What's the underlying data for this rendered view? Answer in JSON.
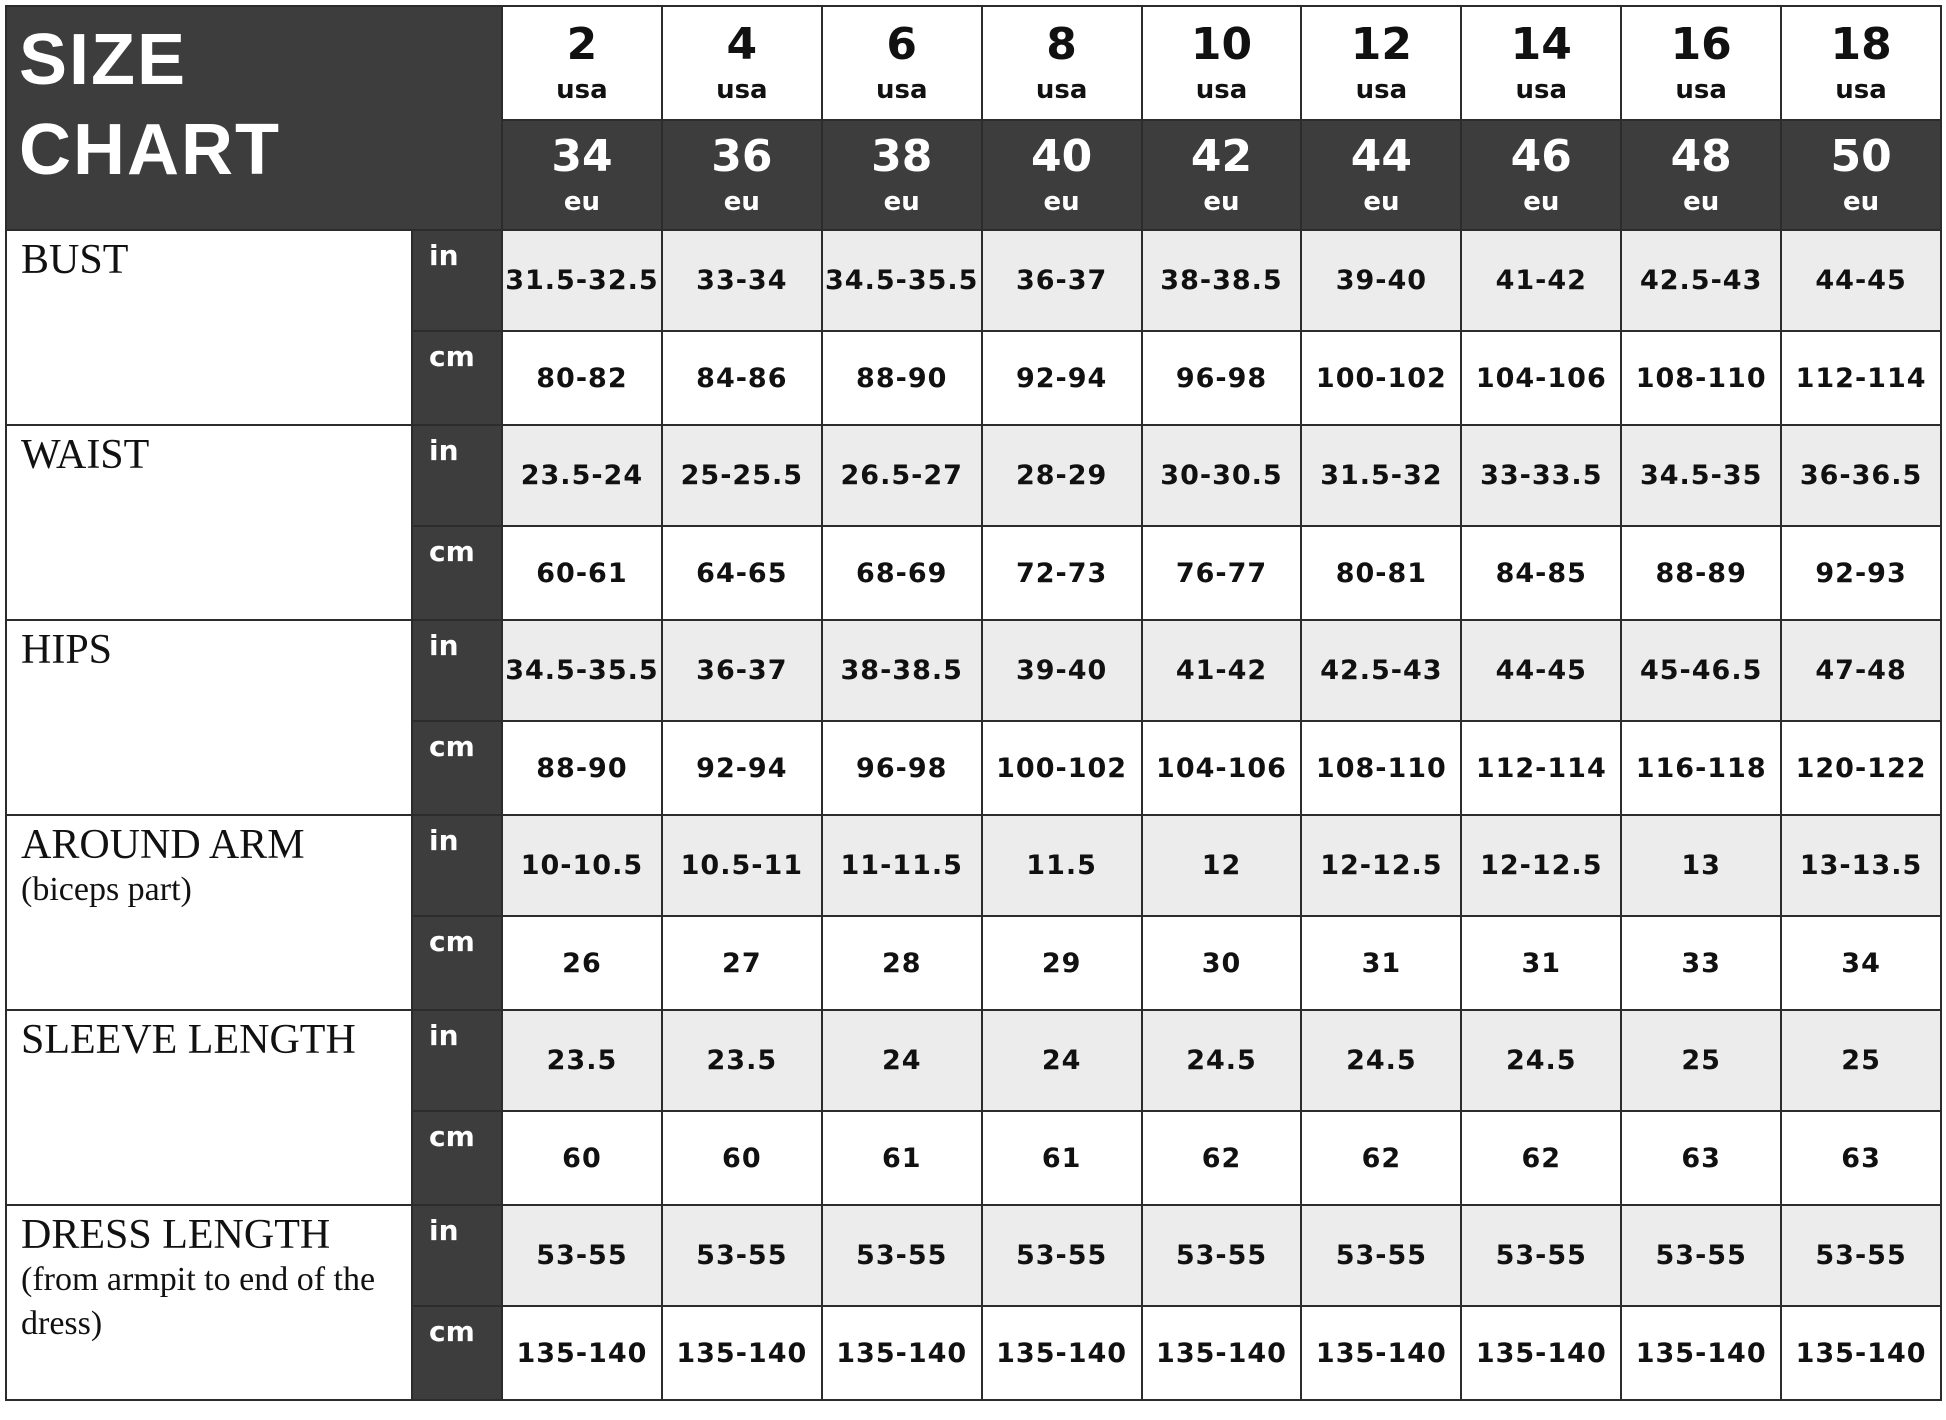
{
  "title_line1": "SIZE",
  "title_line2": "CHART",
  "usa_sizes": [
    "2",
    "4",
    "6",
    "8",
    "10",
    "12",
    "14",
    "16",
    "18"
  ],
  "usa_label": "usa",
  "eu_sizes": [
    "34",
    "36",
    "38",
    "40",
    "42",
    "44",
    "46",
    "48",
    "50"
  ],
  "eu_label": "eu",
  "unit_in": "in",
  "unit_cm": "cm",
  "rows": [
    {
      "label": "BUST",
      "sub": "",
      "in": [
        "31.5-32.5",
        "33-34",
        "34.5-35.5",
        "36-37",
        "38-38.5",
        "39-40",
        "41-42",
        "42.5-43",
        "44-45"
      ],
      "cm": [
        "80-82",
        "84-86",
        "88-90",
        "92-94",
        "96-98",
        "100-102",
        "104-106",
        "108-110",
        "112-114"
      ]
    },
    {
      "label": "WAIST",
      "sub": "",
      "in": [
        "23.5-24",
        "25-25.5",
        "26.5-27",
        "28-29",
        "30-30.5",
        "31.5-32",
        "33-33.5",
        "34.5-35",
        "36-36.5"
      ],
      "cm": [
        "60-61",
        "64-65",
        "68-69",
        "72-73",
        "76-77",
        "80-81",
        "84-85",
        "88-89",
        "92-93"
      ]
    },
    {
      "label": "HIPS",
      "sub": "",
      "in": [
        "34.5-35.5",
        "36-37",
        "38-38.5",
        "39-40",
        "41-42",
        "42.5-43",
        "44-45",
        "45-46.5",
        "47-48"
      ],
      "cm": [
        "88-90",
        "92-94",
        "96-98",
        "100-102",
        "104-106",
        "108-110",
        "112-114",
        "116-118",
        "120-122"
      ]
    },
    {
      "label": "AROUND ARM",
      "sub": "(biceps part)",
      "in": [
        "10-10.5",
        "10.5-11",
        "11-11.5",
        "11.5",
        "12",
        "12-12.5",
        "12-12.5",
        "13",
        "13-13.5"
      ],
      "cm": [
        "26",
        "27",
        "28",
        "29",
        "30",
        "31",
        "31",
        "33",
        "34"
      ]
    },
    {
      "label": "SLEEVE  LENGTH",
      "sub": "",
      "in": [
        "23.5",
        "23.5",
        "24",
        "24",
        "24.5",
        "24.5",
        "24.5",
        "25",
        "25"
      ],
      "cm": [
        "60",
        "60",
        "61",
        "61",
        "62",
        "62",
        "62",
        "63",
        "63"
      ]
    },
    {
      "label": "DRESS  LENGTH",
      "sub": "(from armpit to end of the dress)",
      "in": [
        "53-55",
        "53-55",
        "53-55",
        "53-55",
        "53-55",
        "53-55",
        "53-55",
        "53-55",
        "53-55"
      ],
      "cm": [
        "135-140",
        "135-140",
        "135-140",
        "135-140",
        "135-140",
        "135-140",
        "135-140",
        "135-140",
        "135-140"
      ]
    }
  ]
}
